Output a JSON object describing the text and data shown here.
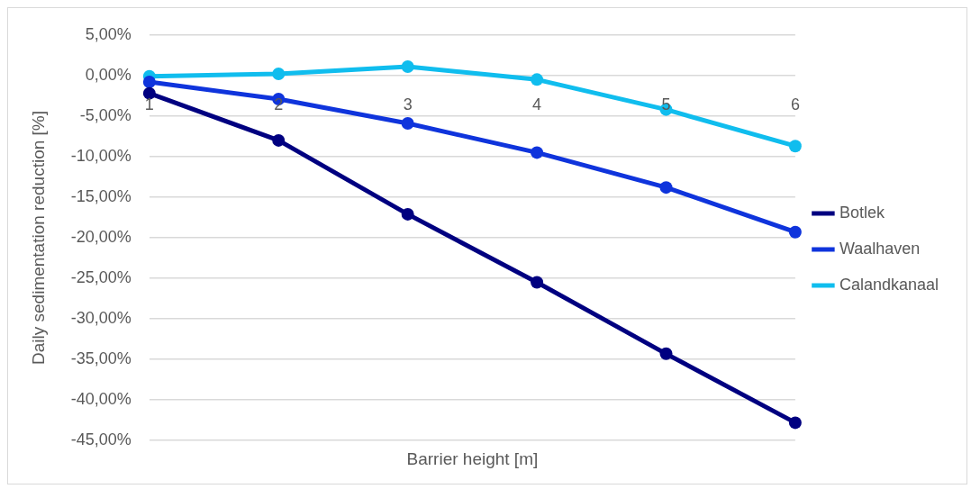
{
  "chart_data": {
    "type": "line",
    "xlabel": "Barrier height [m]",
    "ylabel": "Daily sedimentation reduction [%]",
    "categories": [
      "1",
      "2",
      "3",
      "4",
      "5",
      "6"
    ],
    "series": [
      {
        "name": "Botlek",
        "color": "#000080",
        "values": [
          -2.2,
          -8.0,
          -17.1,
          -25.5,
          -34.3,
          -42.8
        ]
      },
      {
        "name": "Waalhaven",
        "color": "#0f34dc",
        "values": [
          -0.8,
          -2.9,
          -5.9,
          -9.5,
          -13.8,
          -19.3
        ]
      },
      {
        "name": "Calandkanaal",
        "color": "#10bdee",
        "values": [
          -0.1,
          0.2,
          1.1,
          -0.5,
          -4.2,
          -8.7
        ]
      }
    ],
    "ylim": [
      -45,
      5
    ],
    "yticks": [
      {
        "value": -45,
        "label": "-45,00%"
      },
      {
        "value": -40,
        "label": "-40,00%"
      },
      {
        "value": -35,
        "label": "-35,00%"
      },
      {
        "value": -30,
        "label": "-30,00%"
      },
      {
        "value": -25,
        "label": "-25,00%"
      },
      {
        "value": -20,
        "label": "-20,00%"
      },
      {
        "value": -15,
        "label": "-15,00%"
      },
      {
        "value": -10,
        "label": "-10,00%"
      },
      {
        "value": -5,
        "label": "-5,00%"
      },
      {
        "value": 0,
        "label": "0,00%"
      },
      {
        "value": 5,
        "label": "5,00%"
      }
    ],
    "grid": "y",
    "legend": "right",
    "marker": "circle",
    "line_style": "solid"
  }
}
